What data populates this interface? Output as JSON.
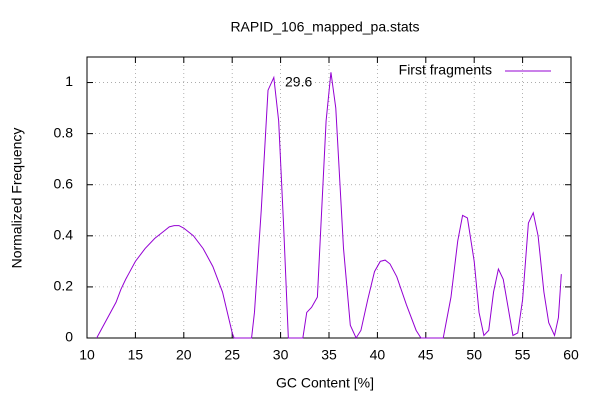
{
  "chart_data": {
    "type": "line",
    "title": "RAPID_106_mapped_pa.stats",
    "x_label": "GC Content [%]",
    "y_label": "Normalized Frequency",
    "annotations": [
      "29.6"
    ],
    "x": [
      11,
      12,
      13,
      13.5,
      14,
      15,
      16,
      17,
      18,
      18.5,
      19,
      19.5,
      20,
      21,
      22,
      23,
      24,
      24.5,
      25,
      25.2,
      27,
      27.3,
      28,
      28.7,
      29.3,
      29.8,
      30.3,
      30.8,
      32.3,
      32.7,
      33.2,
      33.8,
      34.7,
      35.2,
      35.7,
      36.5,
      37.2,
      37.8,
      38.3,
      39,
      39.7,
      40.3,
      40.8,
      41.3,
      42,
      43,
      44,
      44.5,
      46.8,
      47.6,
      48.3,
      48.8,
      49.3,
      50,
      50.5,
      51,
      51.5,
      52,
      52.5,
      53,
      53.5,
      54,
      54.5,
      55,
      55.6,
      56.1,
      56.6,
      57.2,
      57.7,
      58.3,
      58.7,
      59
    ],
    "series": [
      {
        "name": "First fragments",
        "color": "#9400d3",
        "values": [
          0,
          0.07,
          0.14,
          0.19,
          0.23,
          0.3,
          0.35,
          0.39,
          0.42,
          0.435,
          0.44,
          0.44,
          0.43,
          0.4,
          0.35,
          0.28,
          0.18,
          0.1,
          0.02,
          0,
          0,
          0.1,
          0.5,
          0.97,
          1.02,
          0.85,
          0.45,
          0,
          0,
          0.1,
          0.12,
          0.16,
          0.85,
          1.04,
          0.9,
          0.35,
          0.05,
          0,
          0.03,
          0.15,
          0.26,
          0.3,
          0.305,
          0.29,
          0.24,
          0.13,
          0.03,
          0,
          0,
          0.16,
          0.38,
          0.48,
          0.47,
          0.3,
          0.1,
          0.01,
          0.03,
          0.18,
          0.27,
          0.23,
          0.12,
          0.01,
          0.02,
          0.15,
          0.45,
          0.49,
          0.4,
          0.18,
          0.06,
          0.01,
          0.08,
          0.25
        ]
      }
    ],
    "xlim": [
      10,
      60
    ],
    "xticks": [
      10,
      15,
      20,
      25,
      30,
      35,
      40,
      45,
      50,
      55,
      60
    ],
    "ylim": [
      0,
      1.1
    ],
    "yticks": [
      0,
      0.2,
      0.4,
      0.6,
      0.8,
      1
    ],
    "grid": true,
    "legend": "top-right"
  }
}
